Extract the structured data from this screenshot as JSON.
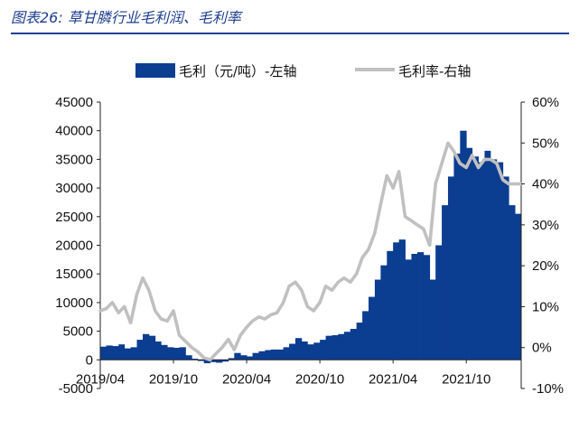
{
  "title": "图表26:  草甘膦行业毛利润、毛利率",
  "colors": {
    "bar": "#0b3d91",
    "line": "#c0c0c0",
    "title": "#1f3f8f"
  },
  "chart_data": {
    "type": "bar",
    "title": "图表26:  草甘膦行业毛利润、毛利率",
    "legend_position": "top",
    "grid": false,
    "x_ticks": [
      "2019/04",
      "2019/10",
      "2020/04",
      "2020/10",
      "2021/04",
      "2021/10"
    ],
    "y_left": {
      "min": -5000,
      "max": 45000,
      "ticks": [
        "-5000",
        "0",
        "5000",
        "10000",
        "15000",
        "20000",
        "25000",
        "30000",
        "35000",
        "40000",
        "45000"
      ]
    },
    "y_right": {
      "min": -10,
      "max": 60,
      "ticks": [
        "-10%",
        "0%",
        "10%",
        "20%",
        "30%",
        "40%",
        "50%",
        "60%"
      ]
    },
    "series": [
      {
        "name": "毛利（元/吨）-左轴",
        "type": "bar",
        "axis": "left",
        "points": [
          [
            0,
            2300
          ],
          [
            0.16,
            2500
          ],
          [
            0.33,
            2400
          ],
          [
            0.5,
            2700
          ],
          [
            0.66,
            2000
          ],
          [
            0.83,
            2200
          ],
          [
            1,
            3500
          ],
          [
            1.16,
            4500
          ],
          [
            1.33,
            4200
          ],
          [
            1.5,
            3200
          ],
          [
            1.66,
            2600
          ],
          [
            1.83,
            2200
          ],
          [
            2,
            2100
          ],
          [
            2.16,
            2200
          ],
          [
            2.33,
            800
          ],
          [
            2.5,
            200
          ],
          [
            2.66,
            -200
          ],
          [
            2.83,
            -600
          ],
          [
            3,
            -400
          ],
          [
            3.16,
            -500
          ],
          [
            3.33,
            -300
          ],
          [
            3.5,
            300
          ],
          [
            3.66,
            1200
          ],
          [
            3.83,
            800
          ],
          [
            4,
            600
          ],
          [
            4.16,
            1200
          ],
          [
            4.33,
            1500
          ],
          [
            4.5,
            1700
          ],
          [
            4.66,
            1800
          ],
          [
            4.83,
            1800
          ],
          [
            5,
            2200
          ],
          [
            5.16,
            2800
          ],
          [
            5.33,
            3800
          ],
          [
            5.5,
            3200
          ],
          [
            5.66,
            2700
          ],
          [
            5.83,
            3000
          ],
          [
            6,
            3500
          ],
          [
            6.16,
            4200
          ],
          [
            6.33,
            4300
          ],
          [
            6.5,
            4500
          ],
          [
            6.66,
            4900
          ],
          [
            6.83,
            5400
          ],
          [
            7,
            6500
          ],
          [
            7.16,
            8500
          ],
          [
            7.33,
            11000
          ],
          [
            7.5,
            14000
          ],
          [
            7.66,
            16500
          ],
          [
            7.83,
            19000
          ],
          [
            8,
            20500
          ],
          [
            8.16,
            21000
          ],
          [
            8.33,
            17500
          ],
          [
            8.5,
            18500
          ],
          [
            8.66,
            18800
          ],
          [
            8.83,
            18300
          ],
          [
            9,
            14000
          ],
          [
            9.16,
            20000
          ],
          [
            9.33,
            27000
          ],
          [
            9.5,
            32000
          ],
          [
            9.66,
            36000
          ],
          [
            9.83,
            40000
          ],
          [
            10,
            37000
          ],
          [
            10.16,
            35500
          ],
          [
            10.33,
            34500
          ],
          [
            10.5,
            36500
          ],
          [
            10.66,
            35000
          ],
          [
            10.83,
            34500
          ],
          [
            11,
            32000
          ],
          [
            11.16,
            27000
          ],
          [
            11.33,
            25500
          ],
          [
            11.5,
            25000
          ]
        ]
      },
      {
        "name": "毛利率-右轴",
        "type": "line",
        "axis": "right",
        "points": [
          [
            0,
            9
          ],
          [
            0.16,
            9.5
          ],
          [
            0.33,
            11
          ],
          [
            0.5,
            8.5
          ],
          [
            0.66,
            10
          ],
          [
            0.83,
            6
          ],
          [
            1,
            13
          ],
          [
            1.16,
            17
          ],
          [
            1.33,
            14
          ],
          [
            1.5,
            9
          ],
          [
            1.66,
            7
          ],
          [
            1.83,
            6.5
          ],
          [
            2,
            9
          ],
          [
            2.16,
            3
          ],
          [
            2.33,
            1.5
          ],
          [
            2.5,
            0
          ],
          [
            2.66,
            -1
          ],
          [
            2.83,
            -2.5
          ],
          [
            3,
            -3
          ],
          [
            3.16,
            -1.5
          ],
          [
            3.33,
            0
          ],
          [
            3.5,
            2
          ],
          [
            3.66,
            -0.5
          ],
          [
            3.83,
            3
          ],
          [
            4,
            5
          ],
          [
            4.16,
            6.5
          ],
          [
            4.33,
            7.5
          ],
          [
            4.5,
            7
          ],
          [
            4.66,
            8
          ],
          [
            4.83,
            8.5
          ],
          [
            5,
            11
          ],
          [
            5.16,
            15
          ],
          [
            5.33,
            16
          ],
          [
            5.5,
            14
          ],
          [
            5.66,
            10
          ],
          [
            5.83,
            9
          ],
          [
            6,
            11
          ],
          [
            6.16,
            15
          ],
          [
            6.33,
            14
          ],
          [
            6.5,
            16
          ],
          [
            6.66,
            17
          ],
          [
            6.83,
            16
          ],
          [
            7,
            18
          ],
          [
            7.16,
            22
          ],
          [
            7.33,
            24
          ],
          [
            7.5,
            28
          ],
          [
            7.66,
            35
          ],
          [
            7.83,
            42
          ],
          [
            8,
            39
          ],
          [
            8.16,
            43
          ],
          [
            8.33,
            32
          ],
          [
            8.5,
            31
          ],
          [
            8.66,
            30
          ],
          [
            8.83,
            29
          ],
          [
            9,
            25
          ],
          [
            9.16,
            40
          ],
          [
            9.33,
            45
          ],
          [
            9.5,
            50
          ],
          [
            9.66,
            48
          ],
          [
            9.83,
            45
          ],
          [
            10,
            44
          ],
          [
            10.16,
            47
          ],
          [
            10.33,
            44
          ],
          [
            10.5,
            46
          ],
          [
            10.66,
            46
          ],
          [
            10.83,
            45
          ],
          [
            11,
            41
          ],
          [
            11.16,
            40
          ],
          [
            11.33,
            40
          ],
          [
            11.5,
            40
          ]
        ]
      }
    ]
  }
}
